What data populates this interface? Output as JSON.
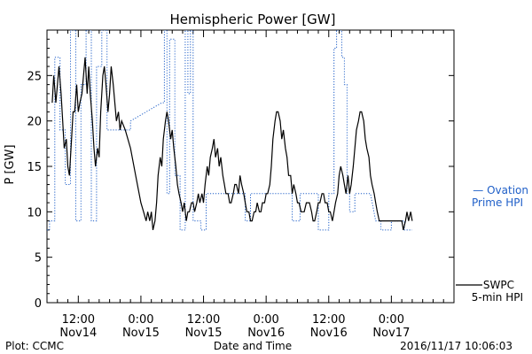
{
  "chart_data": {
    "type": "line",
    "title": "Hemispheric Power [GW]",
    "xlabel": "Date and Time",
    "ylabel": "P [GW]",
    "ylim": [
      0,
      30
    ],
    "xlim_hours": [
      6,
      84
    ],
    "yticks": [
      0,
      5,
      10,
      15,
      20,
      25
    ],
    "xticks": [
      {
        "h": 12,
        "line1": "12:00",
        "line2": "Nov14"
      },
      {
        "h": 24,
        "line1": "0:00",
        "line2": "Nov15"
      },
      {
        "h": 36,
        "line1": "12:00",
        "line2": "Nov15"
      },
      {
        "h": 48,
        "line1": "0:00",
        "line2": "Nov16"
      },
      {
        "h": 60,
        "line1": "12:00",
        "line2": "Nov16"
      },
      {
        "h": 72,
        "line1": "0:00",
        "line2": "Nov17"
      }
    ],
    "footer_left": "Plot: CCMC",
    "footer_right": "2016/11/17 10:06:03",
    "colors": {
      "swpc": "#000000",
      "ovation": "#1f5fc8"
    },
    "series": [
      {
        "name": "SWPC 5-min HPI",
        "label_lines": [
          "SWPC",
          "5-min HPI"
        ],
        "style": "solid",
        "points": [
          [
            7.0,
            22
          ],
          [
            7.3,
            25
          ],
          [
            7.7,
            22
          ],
          [
            8.0,
            24
          ],
          [
            8.3,
            26
          ],
          [
            8.7,
            23
          ],
          [
            9.0,
            20
          ],
          [
            9.3,
            17
          ],
          [
            9.7,
            18
          ],
          [
            10.0,
            15
          ],
          [
            10.3,
            14
          ],
          [
            10.7,
            18
          ],
          [
            11.0,
            21
          ],
          [
            11.3,
            21
          ],
          [
            11.7,
            24
          ],
          [
            12.0,
            21
          ],
          [
            12.3,
            22
          ],
          [
            12.7,
            23
          ],
          [
            13.0,
            25
          ],
          [
            13.3,
            27
          ],
          [
            13.7,
            23
          ],
          [
            14.0,
            26
          ],
          [
            14.3,
            23
          ],
          [
            14.7,
            20
          ],
          [
            15.0,
            17
          ],
          [
            15.3,
            15
          ],
          [
            15.7,
            17
          ],
          [
            16.0,
            16
          ],
          [
            16.3,
            21
          ],
          [
            16.7,
            25
          ],
          [
            17.0,
            26
          ],
          [
            17.3,
            24
          ],
          [
            17.7,
            21
          ],
          [
            18.0,
            23
          ],
          [
            18.3,
            26
          ],
          [
            18.7,
            24
          ],
          [
            19.0,
            22
          ],
          [
            19.3,
            20
          ],
          [
            19.7,
            21
          ],
          [
            20.0,
            19
          ],
          [
            20.3,
            20
          ],
          [
            21.0,
            19
          ],
          [
            22.0,
            17
          ],
          [
            23.0,
            14
          ],
          [
            24.0,
            11
          ],
          [
            24.5,
            10
          ],
          [
            25.0,
            9
          ],
          [
            25.3,
            10
          ],
          [
            25.7,
            9
          ],
          [
            26.0,
            10
          ],
          [
            26.3,
            8
          ],
          [
            26.7,
            9
          ],
          [
            27.0,
            11
          ],
          [
            27.3,
            14
          ],
          [
            27.7,
            16
          ],
          [
            28.0,
            15
          ],
          [
            28.3,
            18
          ],
          [
            28.7,
            20
          ],
          [
            29.0,
            21
          ],
          [
            29.3,
            20
          ],
          [
            29.7,
            18
          ],
          [
            30.0,
            19
          ],
          [
            30.3,
            17
          ],
          [
            30.7,
            15
          ],
          [
            31.0,
            13
          ],
          [
            31.3,
            12
          ],
          [
            31.7,
            11
          ],
          [
            32.0,
            10
          ],
          [
            32.3,
            11
          ],
          [
            32.7,
            9
          ],
          [
            33.0,
            10
          ],
          [
            33.3,
            10
          ],
          [
            33.7,
            11
          ],
          [
            34.0,
            11
          ],
          [
            34.3,
            10
          ],
          [
            34.7,
            11
          ],
          [
            35.0,
            12
          ],
          [
            35.3,
            11
          ],
          [
            35.7,
            12
          ],
          [
            36.0,
            11
          ],
          [
            36.3,
            13
          ],
          [
            36.7,
            15
          ],
          [
            37.0,
            14
          ],
          [
            37.3,
            16
          ],
          [
            37.7,
            17
          ],
          [
            38.0,
            18
          ],
          [
            38.3,
            16
          ],
          [
            38.7,
            17
          ],
          [
            39.0,
            15
          ],
          [
            39.3,
            16
          ],
          [
            39.7,
            14
          ],
          [
            40.0,
            13
          ],
          [
            40.3,
            12
          ],
          [
            40.7,
            12
          ],
          [
            41.0,
            11
          ],
          [
            41.3,
            11
          ],
          [
            41.7,
            12
          ],
          [
            42.0,
            13
          ],
          [
            42.3,
            13
          ],
          [
            42.7,
            12
          ],
          [
            43.0,
            14
          ],
          [
            43.3,
            13
          ],
          [
            43.7,
            12
          ],
          [
            44.0,
            11
          ],
          [
            44.3,
            10
          ],
          [
            44.7,
            10
          ],
          [
            45.0,
            9
          ],
          [
            45.3,
            9
          ],
          [
            45.7,
            10
          ],
          [
            46.0,
            10
          ],
          [
            46.3,
            11
          ],
          [
            46.7,
            10
          ],
          [
            47.0,
            10
          ],
          [
            47.3,
            11
          ],
          [
            47.7,
            11
          ],
          [
            48.0,
            12
          ],
          [
            48.3,
            12
          ],
          [
            48.7,
            13
          ],
          [
            49.0,
            15
          ],
          [
            49.3,
            18
          ],
          [
            49.7,
            20
          ],
          [
            50.0,
            21
          ],
          [
            50.3,
            21
          ],
          [
            50.7,
            20
          ],
          [
            51.0,
            18
          ],
          [
            51.3,
            19
          ],
          [
            51.7,
            17
          ],
          [
            52.0,
            16
          ],
          [
            52.3,
            14
          ],
          [
            52.7,
            14
          ],
          [
            53.0,
            12
          ],
          [
            53.3,
            13
          ],
          [
            53.7,
            12
          ],
          [
            54.0,
            11
          ],
          [
            54.3,
            11
          ],
          [
            54.7,
            10
          ],
          [
            55.0,
            10
          ],
          [
            55.3,
            10
          ],
          [
            55.7,
            11
          ],
          [
            56.0,
            11
          ],
          [
            56.3,
            11
          ],
          [
            56.7,
            10
          ],
          [
            57.0,
            9
          ],
          [
            57.3,
            9
          ],
          [
            57.7,
            10
          ],
          [
            58.0,
            11
          ],
          [
            58.3,
            11
          ],
          [
            58.7,
            12
          ],
          [
            59.0,
            12
          ],
          [
            59.3,
            11
          ],
          [
            59.7,
            11
          ],
          [
            60.0,
            10
          ],
          [
            60.3,
            10
          ],
          [
            60.7,
            9
          ],
          [
            61.0,
            10
          ],
          [
            61.3,
            11
          ],
          [
            61.7,
            12
          ],
          [
            62.0,
            14
          ],
          [
            62.3,
            15
          ],
          [
            62.7,
            14
          ],
          [
            63.0,
            13
          ],
          [
            63.3,
            12
          ],
          [
            63.7,
            14
          ],
          [
            64.0,
            12
          ],
          [
            64.3,
            13
          ],
          [
            64.7,
            15
          ],
          [
            65.0,
            17
          ],
          [
            65.3,
            19
          ],
          [
            65.7,
            20
          ],
          [
            66.0,
            21
          ],
          [
            66.3,
            21
          ],
          [
            66.7,
            20
          ],
          [
            67.0,
            18
          ],
          [
            67.3,
            17
          ],
          [
            67.7,
            16
          ],
          [
            68.0,
            14
          ],
          [
            68.3,
            13
          ],
          [
            68.7,
            12
          ],
          [
            69.0,
            11
          ],
          [
            69.3,
            10
          ],
          [
            69.7,
            9
          ],
          [
            70.0,
            9
          ],
          [
            71.0,
            9
          ],
          [
            72.0,
            9
          ],
          [
            73.0,
            9
          ],
          [
            74.0,
            9
          ],
          [
            74.3,
            8
          ],
          [
            74.7,
            9
          ],
          [
            75.0,
            10
          ],
          [
            75.3,
            9
          ],
          [
            75.7,
            10
          ],
          [
            76.0,
            9
          ]
        ]
      },
      {
        "name": "Ovation Prime HPI",
        "label_lines": [
          "— Ovation",
          "Prime HPI"
        ],
        "style": "dotted",
        "points": [
          [
            6.0,
            8
          ],
          [
            6.5,
            8
          ],
          [
            6.5,
            9
          ],
          [
            7.5,
            9
          ],
          [
            7.5,
            27
          ],
          [
            8.5,
            27
          ],
          [
            8.5,
            19
          ],
          [
            9.5,
            19
          ],
          [
            9.5,
            13
          ],
          [
            10.5,
            13
          ],
          [
            10.5,
            30
          ],
          [
            11.5,
            30
          ],
          [
            11.5,
            9
          ],
          [
            12.5,
            9
          ],
          [
            12.5,
            24
          ],
          [
            13.5,
            24
          ],
          [
            13.5,
            30
          ],
          [
            14.5,
            30
          ],
          [
            14.5,
            9
          ],
          [
            15.5,
            9
          ],
          [
            15.5,
            26
          ],
          [
            16.5,
            26
          ],
          [
            16.5,
            30
          ],
          [
            17.5,
            30
          ],
          [
            17.5,
            19
          ],
          [
            22.0,
            19
          ],
          [
            22.0,
            20
          ],
          [
            28.0,
            22
          ],
          [
            28.5,
            22
          ],
          [
            28.5,
            30
          ],
          [
            29.0,
            30
          ],
          [
            29.0,
            12
          ],
          [
            29.5,
            12
          ],
          [
            29.5,
            29
          ],
          [
            30.5,
            29
          ],
          [
            30.5,
            14
          ],
          [
            31.5,
            14
          ],
          [
            31.5,
            8
          ],
          [
            32.5,
            8
          ],
          [
            32.5,
            30
          ],
          [
            33.0,
            30
          ],
          [
            33.0,
            23
          ],
          [
            33.5,
            23
          ],
          [
            33.5,
            30
          ],
          [
            34.0,
            30
          ],
          [
            34.0,
            9
          ],
          [
            35.5,
            9
          ],
          [
            35.5,
            8
          ],
          [
            36.5,
            8
          ],
          [
            36.5,
            12
          ],
          [
            44.0,
            12
          ],
          [
            44.0,
            9
          ],
          [
            45.0,
            9
          ],
          [
            45.0,
            12
          ],
          [
            53.0,
            12
          ],
          [
            53.0,
            9
          ],
          [
            54.5,
            9
          ],
          [
            54.5,
            12
          ],
          [
            58.0,
            12
          ],
          [
            58.0,
            8
          ],
          [
            60.0,
            8
          ],
          [
            60.0,
            12
          ],
          [
            61.0,
            12
          ],
          [
            61.0,
            28
          ],
          [
            61.5,
            28
          ],
          [
            61.5,
            30
          ],
          [
            62.5,
            30
          ],
          [
            62.5,
            27
          ],
          [
            63.0,
            27
          ],
          [
            63.0,
            24
          ],
          [
            63.5,
            24
          ],
          [
            63.5,
            12
          ],
          [
            64.0,
            12
          ],
          [
            64.0,
            10
          ],
          [
            65.0,
            10
          ],
          [
            65.0,
            12
          ],
          [
            68.0,
            12
          ],
          [
            69.0,
            9
          ],
          [
            70.0,
            9
          ],
          [
            70.0,
            8
          ],
          [
            72.0,
            8
          ],
          [
            72.0,
            9
          ],
          [
            74.5,
            9
          ],
          [
            74.5,
            8
          ],
          [
            76.0,
            8
          ]
        ]
      }
    ]
  }
}
